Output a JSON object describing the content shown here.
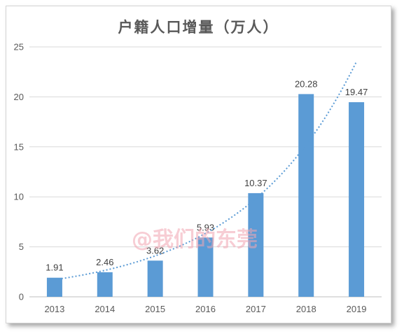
{
  "chart_data": {
    "type": "bar",
    "title": "户籍人口增量（万人）",
    "categories": [
      "2013",
      "2014",
      "2015",
      "2016",
      "2017",
      "2018",
      "2019"
    ],
    "values": [
      1.91,
      2.46,
      3.62,
      5.93,
      10.37,
      20.28,
      19.47
    ],
    "value_labels": [
      "1.91",
      "2.46",
      "3.62",
      "5.93",
      "10.37",
      "20.28",
      "19.47"
    ],
    "ylim": [
      0,
      25
    ],
    "yticks": [
      0,
      5,
      10,
      15,
      20,
      25
    ],
    "grid": true,
    "trendline": "exponential",
    "bar_color": "#5b9bd5",
    "trend_color": "#5b9bd5"
  },
  "watermark": "@我们的东莞"
}
